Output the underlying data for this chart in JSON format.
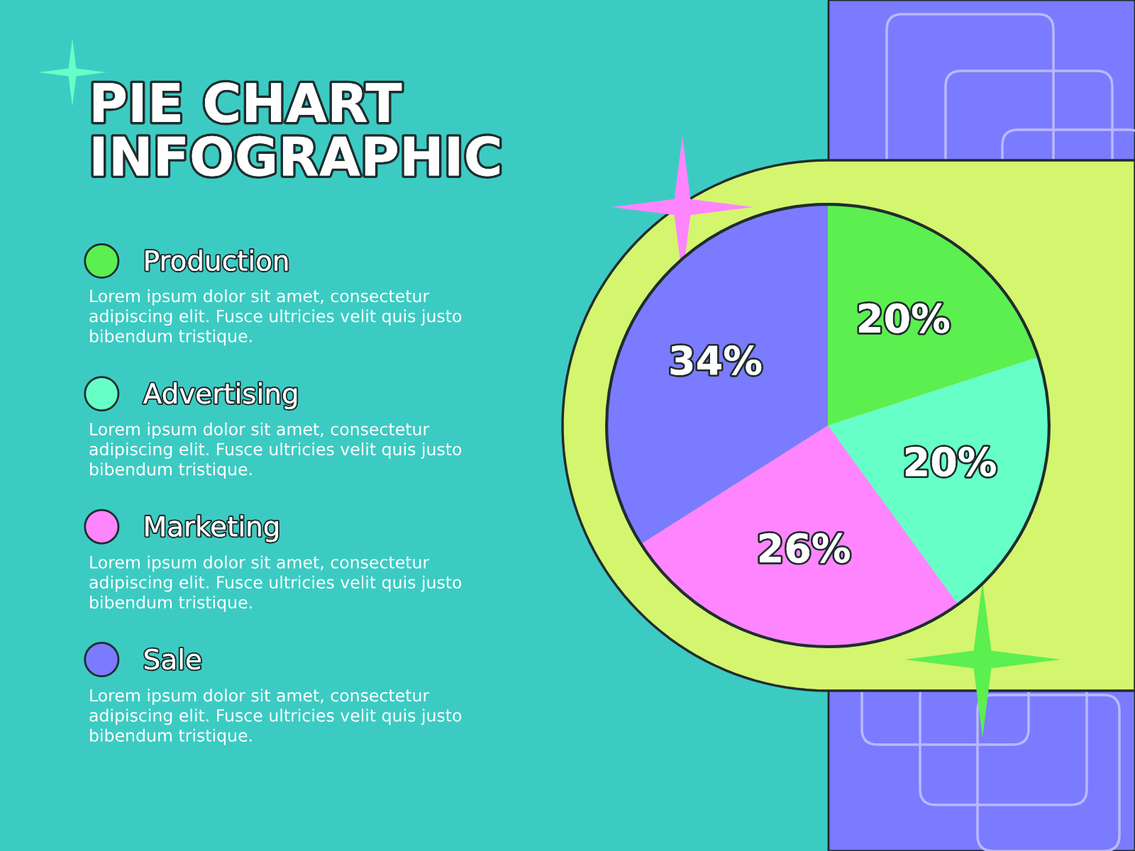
{
  "chart_data": {
    "type": "pie",
    "title": "PIE CHART\nINFOGRAPHIC",
    "categories": [
      "Production",
      "Advertising",
      "Marketing",
      "Sale"
    ],
    "values": [
      20,
      20,
      26,
      34
    ],
    "colors": [
      "#5cef50",
      "#66ffc8",
      "#ff85ff",
      "#7b7bff"
    ],
    "value_labels": [
      "20%",
      "20%",
      "26%",
      "34%"
    ],
    "legend": "left",
    "annotations": [
      "Lorem ipsum dolor sit amet, consectetur\nadipiscing elit. Fusce ultricies velit quis justo\nbibendum tristique.",
      "Lorem ipsum dolor sit amet, consectetur\nadipiscing elit. Fusce ultricies velit quis justo\nbibendum tristique.",
      "Lorem ipsum dolor sit amet, consectetur\nadipiscing elit. Fusce ultricies velit quis justo\nbibendum tristique.",
      "Lorem ipsum dolor sit amet, consectetur\nadipiscing elit. Fusce ultricies velit quis justo\nbibendum tristique."
    ]
  }
}
